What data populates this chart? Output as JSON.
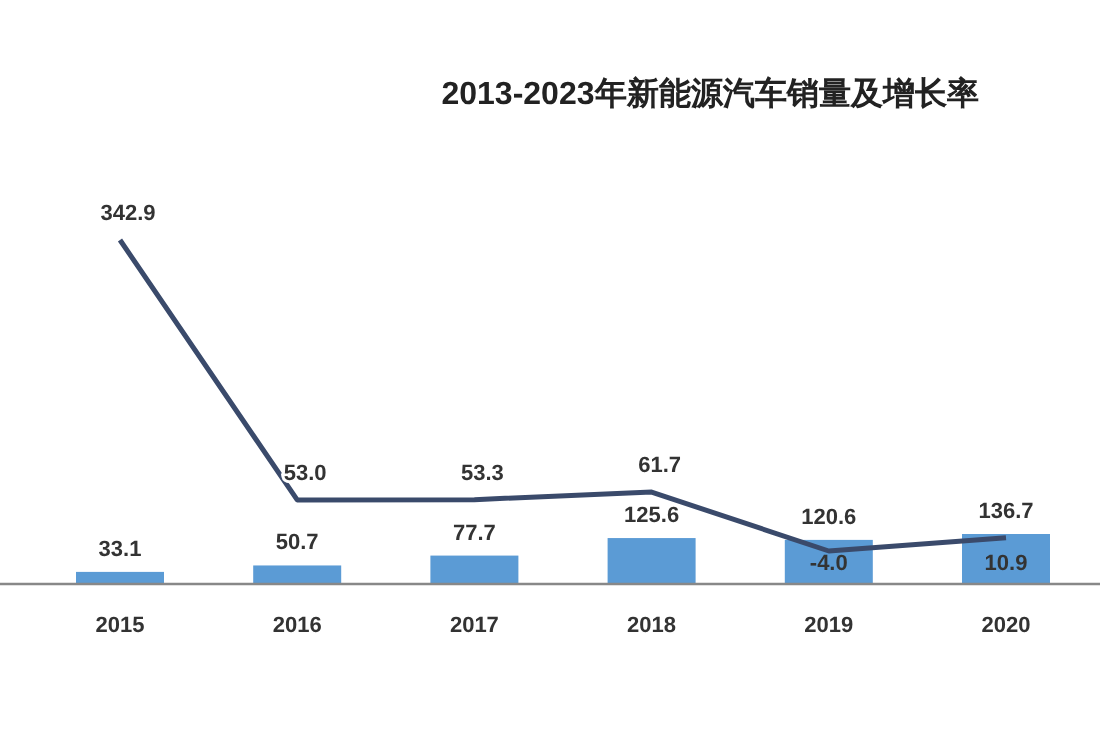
{
  "chart_data": {
    "type": "bar",
    "title": "2013-2023年新能源汽车销量及增长率",
    "categories": [
      "2015",
      "2016",
      "2017",
      "2018",
      "2019",
      "2020"
    ],
    "series": [
      {
        "color": "#5b9bd5",
        "values": [
          33.1,
          50.7,
          77.7,
          125.6,
          120.6,
          136.7
        ],
        "value_labels": [
          "33.1",
          "50.7",
          "77.7",
          "125.6",
          "120.6",
          "136.7"
        ]
      },
      {
        "type": "line",
        "axis": "y2",
        "color": "#3a4a6b",
        "values": [
          342.9,
          53.0,
          53.3,
          61.7,
          -4.0,
          10.9
        ],
        "value_labels": [
          "342.9",
          "53.0",
          "53.3",
          "61.7",
          "-4.0",
          "10.9"
        ]
      }
    ],
    "data_labels": true
  }
}
